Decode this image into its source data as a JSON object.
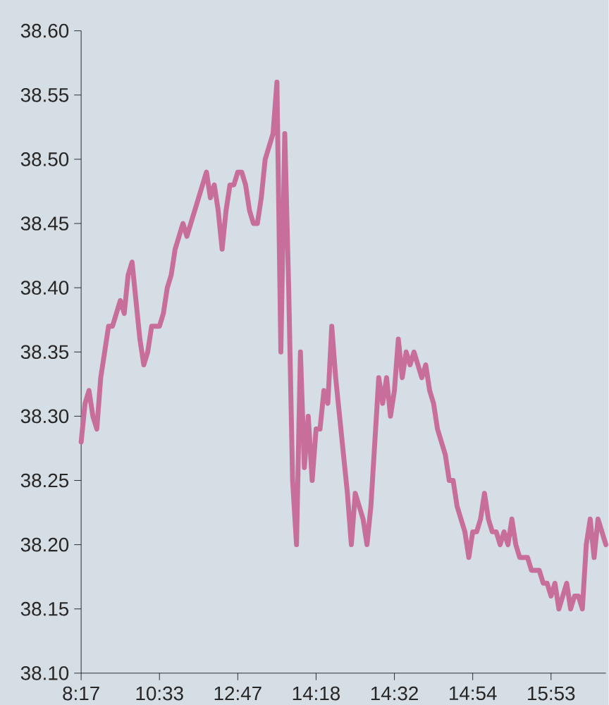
{
  "chart_data": {
    "type": "line",
    "categories": [
      "8:17",
      null,
      null,
      null,
      null,
      null,
      null,
      null,
      null,
      null,
      null,
      null,
      null,
      null,
      null,
      null,
      null,
      null,
      null,
      null,
      "10:33",
      null,
      null,
      null,
      null,
      null,
      null,
      null,
      null,
      null,
      null,
      null,
      null,
      null,
      null,
      null,
      null,
      null,
      null,
      null,
      "12:47",
      null,
      null,
      null,
      null,
      null,
      null,
      null,
      null,
      null,
      null,
      null,
      null,
      null,
      null,
      null,
      null,
      null,
      null,
      null,
      "14:18",
      null,
      null,
      null,
      null,
      null,
      null,
      null,
      null,
      null,
      null,
      null,
      null,
      null,
      null,
      null,
      null,
      null,
      null,
      null,
      "14:32",
      null,
      null,
      null,
      null,
      null,
      null,
      null,
      null,
      null,
      null,
      null,
      null,
      null,
      null,
      null,
      null,
      null,
      null,
      null,
      "14:54",
      null,
      null,
      null,
      null,
      null,
      null,
      null,
      null,
      null,
      null,
      null,
      null,
      null,
      null,
      null,
      null,
      null,
      null,
      null,
      "15:53",
      null,
      null,
      null,
      null,
      null,
      null,
      null,
      null,
      null,
      null,
      null,
      null,
      null,
      null
    ],
    "series": [
      {
        "color": "#c86e9a",
        "values": [
          38.28,
          38.31,
          38.32,
          38.3,
          38.29,
          38.33,
          38.35,
          38.37,
          38.37,
          38.38,
          38.39,
          38.38,
          38.41,
          38.42,
          38.39,
          38.36,
          38.34,
          38.35,
          38.37,
          38.37,
          38.37,
          38.38,
          38.4,
          38.41,
          38.43,
          38.44,
          38.45,
          38.44,
          38.45,
          38.46,
          38.47,
          38.48,
          38.49,
          38.47,
          38.48,
          38.46,
          38.43,
          38.46,
          38.48,
          38.48,
          38.49,
          38.49,
          38.48,
          38.46,
          38.45,
          38.45,
          38.47,
          38.5,
          38.51,
          38.52,
          38.56,
          38.35,
          38.52,
          38.4,
          38.25,
          38.2,
          38.35,
          38.26,
          38.3,
          38.25,
          38.29,
          38.29,
          38.32,
          38.31,
          38.37,
          38.33,
          38.3,
          38.27,
          38.24,
          38.2,
          38.24,
          38.23,
          38.22,
          38.2,
          38.23,
          38.28,
          38.33,
          38.31,
          38.33,
          38.3,
          38.32,
          38.36,
          38.33,
          38.35,
          38.34,
          38.35,
          38.34,
          38.33,
          38.34,
          38.32,
          38.31,
          38.29,
          38.28,
          38.27,
          38.25,
          38.25,
          38.23,
          38.22,
          38.21,
          38.19,
          38.21,
          38.21,
          38.22,
          38.24,
          38.22,
          38.21,
          38.21,
          38.2,
          38.21,
          38.2,
          38.22,
          38.2,
          38.19,
          38.19,
          38.19,
          38.18,
          38.18,
          38.18,
          38.17,
          38.17,
          38.16,
          38.17,
          38.15,
          38.16,
          38.17,
          38.15,
          38.16,
          38.16,
          38.15,
          38.2,
          38.22,
          38.19,
          38.22,
          38.21,
          38.2
        ]
      }
    ],
    "ylim": [
      38.1,
      38.6
    ],
    "yticks": [
      {
        "value": 38.1,
        "label": "38.10"
      },
      {
        "value": 38.15,
        "label": "38.15"
      },
      {
        "value": 38.2,
        "label": "38.20"
      },
      {
        "value": 38.25,
        "label": "38.25"
      },
      {
        "value": 38.3,
        "label": "38.30"
      },
      {
        "value": 38.35,
        "label": "38.35"
      },
      {
        "value": 38.4,
        "label": "38.40"
      },
      {
        "value": 38.45,
        "label": "38.45"
      },
      {
        "value": 38.5,
        "label": "38.50"
      },
      {
        "value": 38.55,
        "label": "38.55"
      },
      {
        "value": 38.6,
        "label": "38.60"
      }
    ],
    "grid": false,
    "marker": "none",
    "line_style": "solid"
  }
}
